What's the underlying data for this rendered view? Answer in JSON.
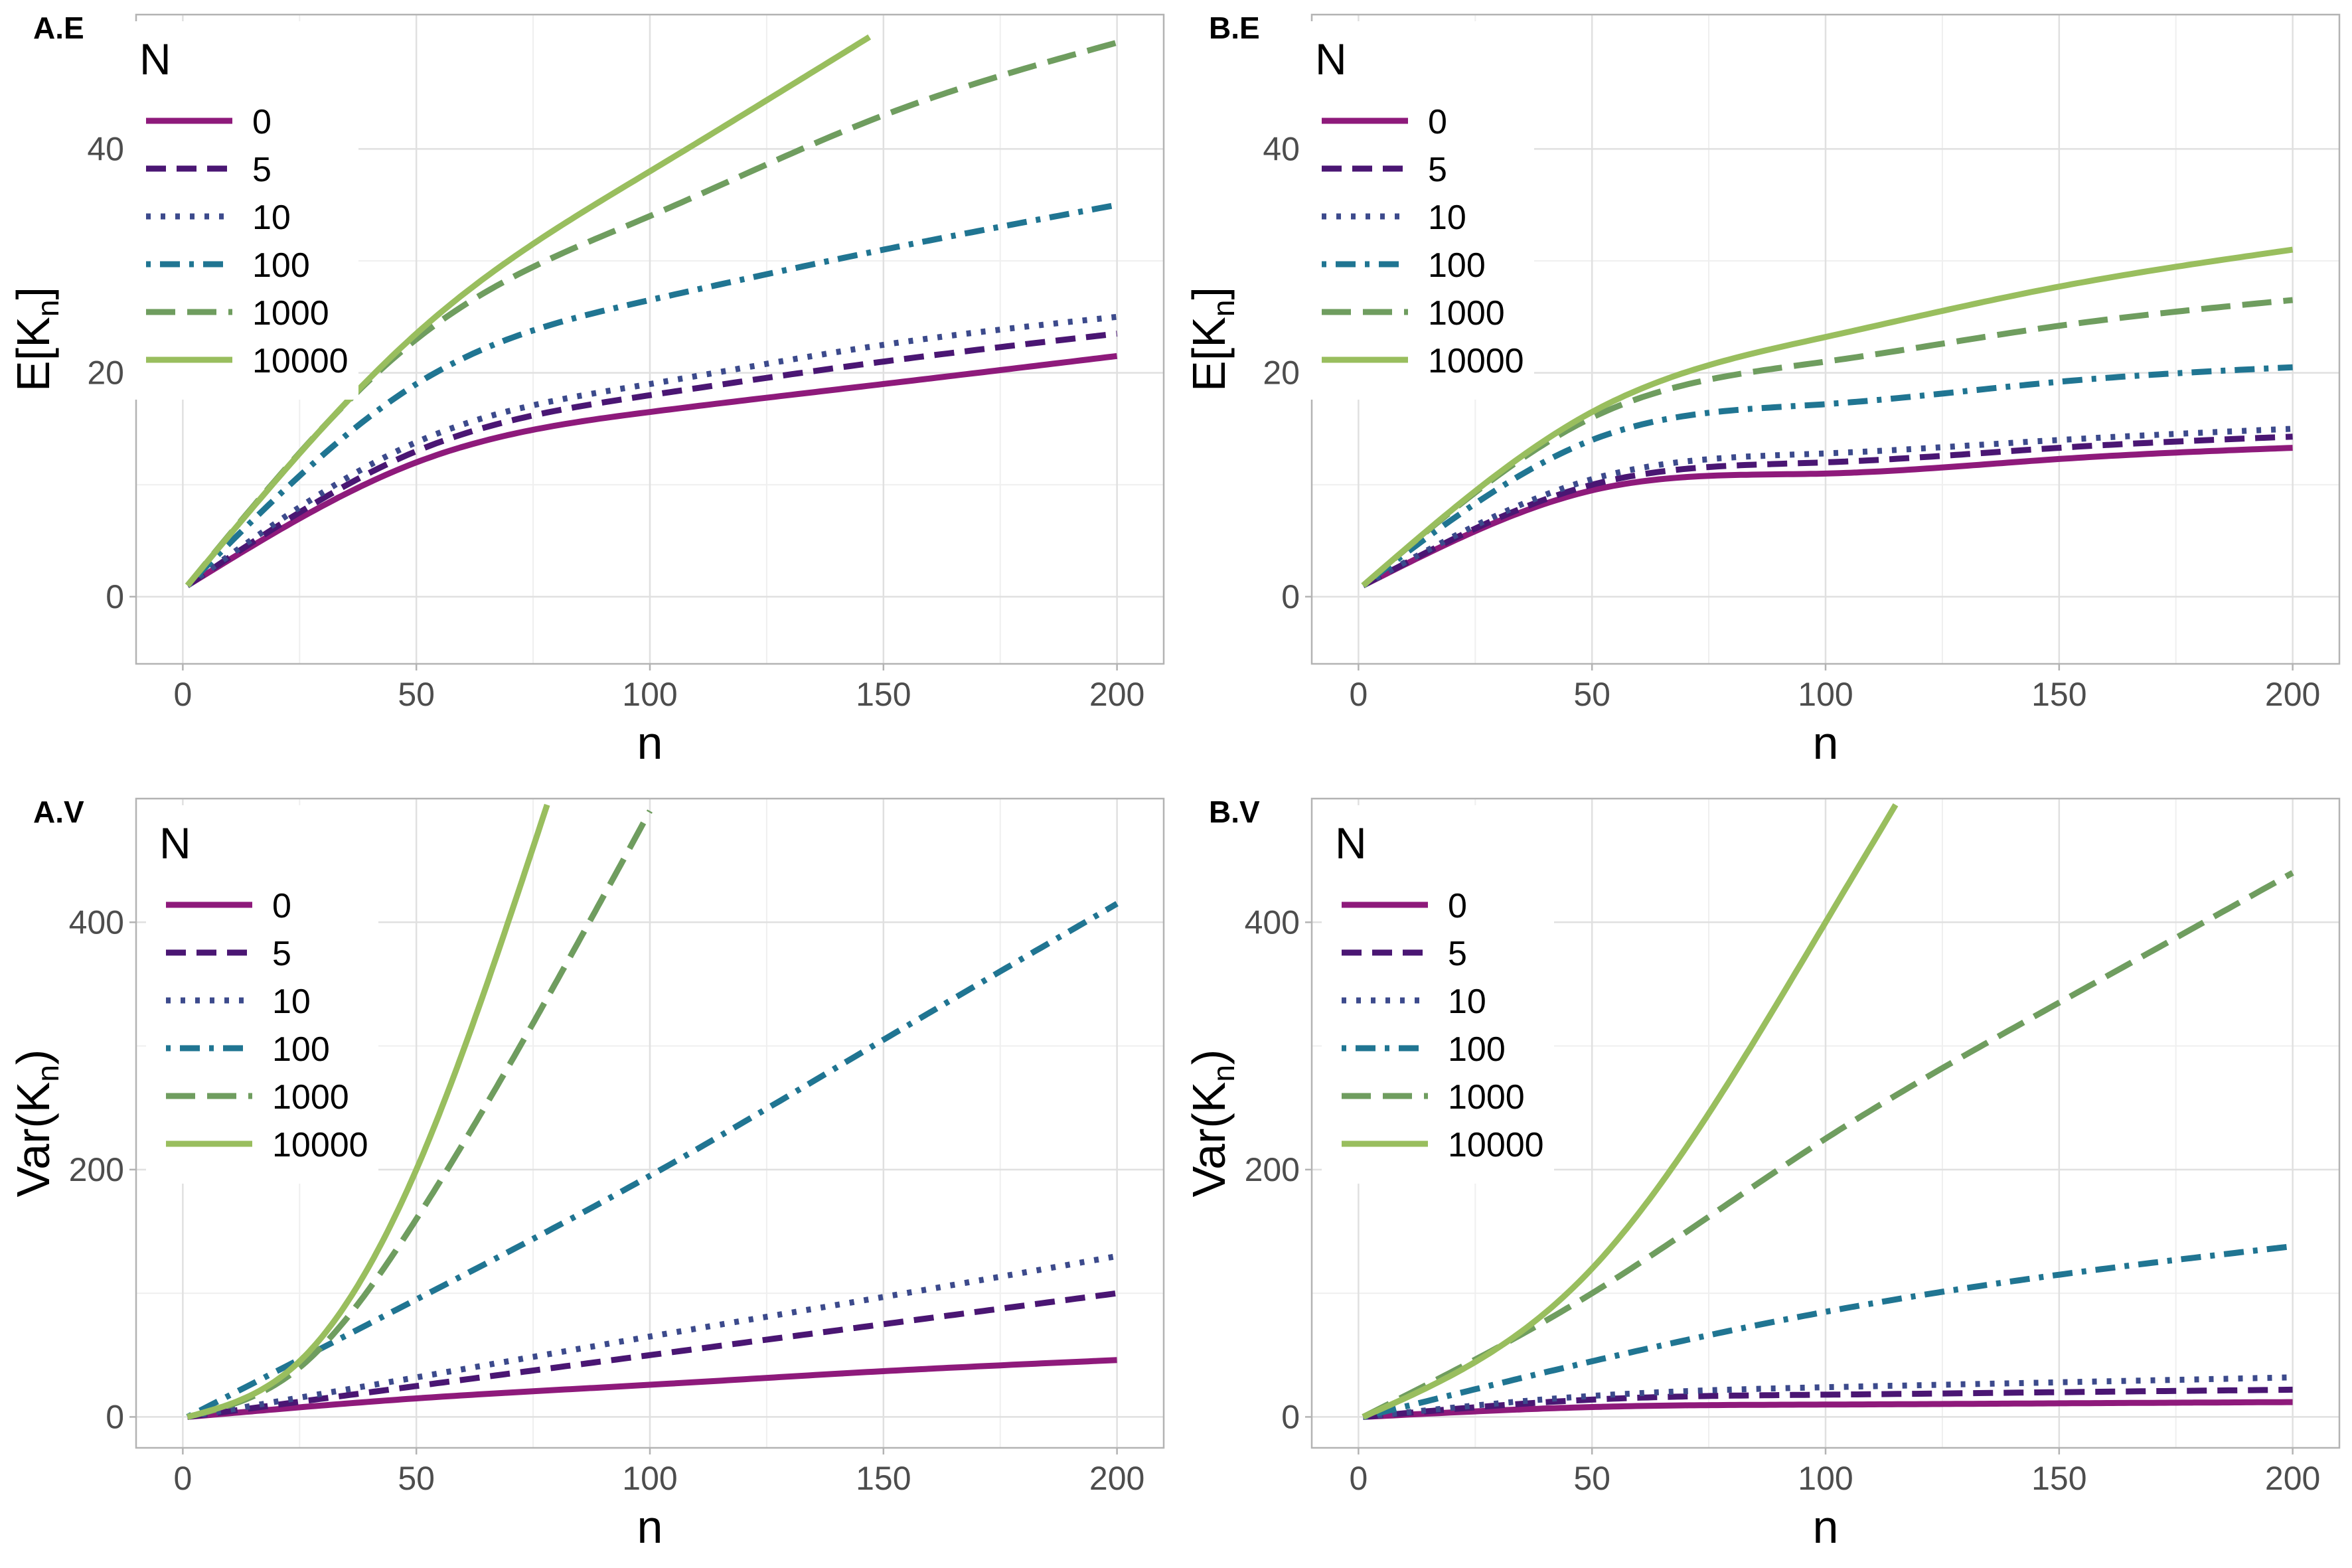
{
  "colors": {
    "0": "#8E1A7B",
    "5": "#4A1673",
    "10": "#3C4A8C",
    "100": "#207592",
    "1000": "#6F9D5F",
    "10000": "#99BE5E",
    "grid_major": "#E0E0E0",
    "grid_minor": "#EFEFEF",
    "frame": "#B3B3B3",
    "tick_text": "#4D4D4D"
  },
  "legend": {
    "title": "N",
    "entries": [
      {
        "label": "0",
        "dash": "solid"
      },
      {
        "label": "5",
        "dash": "dashed"
      },
      {
        "label": "10",
        "dash": "dotted"
      },
      {
        "label": "100",
        "dash": "dotdash"
      },
      {
        "label": "1000",
        "dash": "longdash"
      },
      {
        "label": "10000",
        "dash": "solid"
      }
    ]
  },
  "chart_data": [
    {
      "panel": "A.E",
      "type": "line",
      "xlabel": "n",
      "ylabel": "E[K_n]",
      "xlim": [
        -10,
        210
      ],
      "ylim": [
        -6,
        52
      ],
      "xticks": [
        0,
        50,
        100,
        150,
        200
      ],
      "yticks": [
        0,
        20,
        40
      ],
      "grid": true,
      "legend_position": "top-left",
      "x": [
        1,
        50,
        100,
        147,
        150,
        200
      ],
      "series": [
        {
          "name": "0",
          "values": [
            1,
            12,
            16.5,
            null,
            19,
            21.5
          ]
        },
        {
          "name": "5",
          "values": [
            1,
            13,
            18,
            null,
            21,
            23.5
          ]
        },
        {
          "name": "10",
          "values": [
            1,
            13.8,
            19,
            null,
            22.5,
            25
          ]
        },
        {
          "name": "100",
          "values": [
            1,
            19,
            26.5,
            null,
            31,
            35
          ]
        },
        {
          "name": "1000",
          "values": [
            1,
            23,
            34,
            null,
            43,
            49.5
          ]
        },
        {
          "name": "10000",
          "values": [
            1,
            23.5,
            38,
            50,
            null,
            null
          ]
        }
      ]
    },
    {
      "panel": "B.E",
      "type": "line",
      "xlabel": "n",
      "ylabel": "E[K_n]",
      "xlim": [
        -10,
        210
      ],
      "ylim": [
        -6,
        52
      ],
      "xticks": [
        0,
        50,
        100,
        150,
        200
      ],
      "yticks": [
        0,
        20,
        40
      ],
      "grid": true,
      "legend_position": "top-left",
      "x": [
        1,
        50,
        100,
        150,
        200
      ],
      "series": [
        {
          "name": "0",
          "values": [
            1,
            9.5,
            11,
            12.3,
            13.3
          ]
        },
        {
          "name": "5",
          "values": [
            1,
            10,
            12,
            13.3,
            14.3
          ]
        },
        {
          "name": "10",
          "values": [
            1,
            10.5,
            12.8,
            14,
            15
          ]
        },
        {
          "name": "100",
          "values": [
            1,
            14,
            17.2,
            19.2,
            20.5
          ]
        },
        {
          "name": "1000",
          "values": [
            1,
            16,
            21,
            24.2,
            26.5
          ]
        },
        {
          "name": "10000",
          "values": [
            1,
            16.5,
            23.2,
            27.7,
            31
          ]
        }
      ]
    },
    {
      "panel": "A.V",
      "type": "line",
      "xlabel": "n",
      "ylabel": "Var(K_n)",
      "xlim": [
        -10,
        210
      ],
      "ylim": [
        -25,
        500
      ],
      "xticks": [
        0,
        50,
        100,
        150,
        200
      ],
      "yticks": [
        0,
        200,
        400
      ],
      "grid": true,
      "legend_position": "top-left",
      "x": [
        1,
        25,
        50,
        78,
        100,
        150,
        200
      ],
      "series": [
        {
          "name": "0",
          "values": [
            0,
            null,
            15,
            null,
            26,
            37,
            46
          ]
        },
        {
          "name": "5",
          "values": [
            0,
            null,
            25,
            null,
            50,
            75,
            100
          ]
        },
        {
          "name": "10",
          "values": [
            0,
            null,
            32,
            null,
            65,
            97,
            130
          ]
        },
        {
          "name": "100",
          "values": [
            0,
            null,
            95,
            null,
            195,
            305,
            415
          ]
        },
        {
          "name": "1000",
          "values": [
            0,
            40,
            160,
            null,
            490,
            null,
            null
          ]
        },
        {
          "name": "10000",
          "values": [
            0,
            45,
            200,
            495,
            null,
            null,
            null
          ]
        }
      ]
    },
    {
      "panel": "B.V",
      "type": "line",
      "xlabel": "n",
      "ylabel": "Var(K_n)",
      "xlim": [
        -10,
        210
      ],
      "ylim": [
        -25,
        500
      ],
      "xticks": [
        0,
        50,
        100,
        150,
        200
      ],
      "yticks": [
        0,
        200,
        400
      ],
      "grid": true,
      "legend_position": "top-left",
      "x": [
        1,
        50,
        100,
        115,
        150,
        200
      ],
      "series": [
        {
          "name": "0",
          "values": [
            0,
            8,
            10,
            null,
            11,
            12
          ]
        },
        {
          "name": "5",
          "values": [
            0,
            14,
            18,
            null,
            20,
            22
          ]
        },
        {
          "name": "10",
          "values": [
            0,
            17,
            24,
            null,
            28,
            32
          ]
        },
        {
          "name": "100",
          "values": [
            0,
            45,
            85,
            null,
            115,
            138
          ]
        },
        {
          "name": "1000",
          "values": [
            0,
            100,
            225,
            null,
            335,
            440
          ]
        },
        {
          "name": "10000",
          "values": [
            0,
            120,
            400,
            495,
            null,
            null
          ]
        }
      ]
    }
  ]
}
